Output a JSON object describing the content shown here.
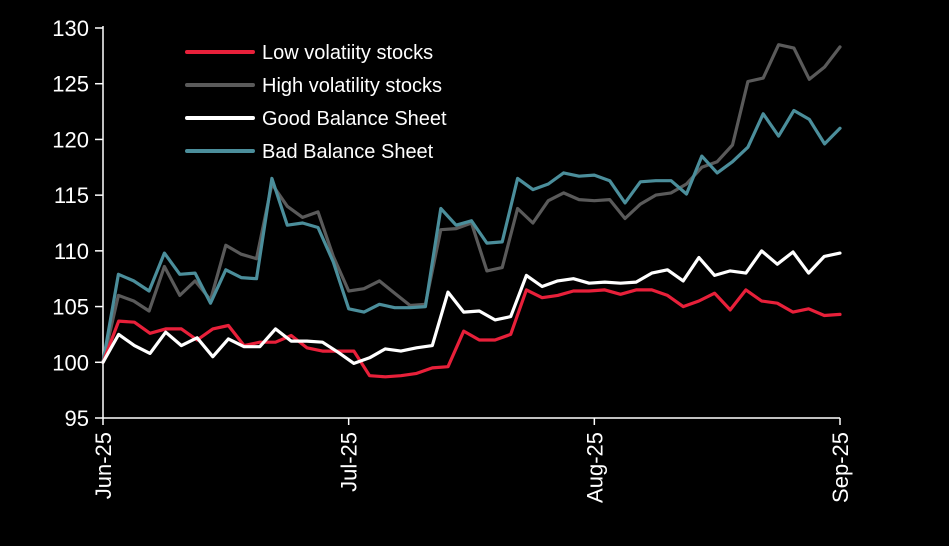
{
  "chart_data": {
    "type": "line",
    "title": "",
    "xlabel": "",
    "ylabel": "",
    "ylim": [
      95,
      130
    ],
    "yticks": [
      95,
      100,
      105,
      110,
      115,
      120,
      125,
      130
    ],
    "xtick_labels": [
      "Jun-25",
      "Jul-25",
      "Aug-25",
      "Sep-25"
    ],
    "xtick_index": [
      0,
      22,
      44,
      66
    ],
    "grid": false,
    "legend_position": "top-left",
    "background": "#000000",
    "series": [
      {
        "name": "Low volatiity stocks",
        "color": "#e8203a",
        "values": [
          100,
          103.7,
          103.6,
          102.6,
          103,
          103,
          102,
          103,
          103.3,
          101.5,
          101.8,
          101.8,
          102.4,
          101.3,
          101,
          101,
          101,
          98.8,
          98.7,
          98.8,
          99,
          99.5,
          99.6,
          102.8,
          102,
          102,
          102.5,
          106.5,
          105.8,
          106,
          106.4,
          106.4,
          106.5,
          106.1,
          106.5,
          106.5,
          106,
          105,
          105.5,
          106.2,
          104.7,
          106.5,
          105.5,
          105.3,
          104.5,
          104.8,
          104.2,
          104.3
        ]
      },
      {
        "name": "High volatility stocks",
        "color": "#5a5a5a",
        "values": [
          100,
          106,
          105.5,
          104.6,
          108.6,
          106,
          107.3,
          105.6,
          110.5,
          109.7,
          109.3,
          116,
          114,
          113,
          113.5,
          109.5,
          106.4,
          106.6,
          107.3,
          106.2,
          105.1,
          105.2,
          111.9,
          112,
          112.5,
          108.2,
          108.5,
          113.8,
          112.5,
          114.5,
          115.2,
          114.6,
          114.5,
          114.6,
          112.9,
          114.2,
          115,
          115.2,
          116,
          117.5,
          118,
          119.5,
          125.2,
          125.5,
          128.5,
          128.2,
          125.4,
          126.5,
          128.3
        ]
      },
      {
        "name": "Good Balance Sheet",
        "color": "#ffffff",
        "values": [
          100,
          102.5,
          101.5,
          100.8,
          102.7,
          101.5,
          102.2,
          100.5,
          102.1,
          101.4,
          101.4,
          103,
          101.9,
          101.9,
          101.8,
          100.9,
          99.9,
          100.4,
          101.2,
          101,
          101.3,
          101.5,
          106.3,
          104.5,
          104.6,
          103.8,
          104.1,
          107.8,
          106.8,
          107.3,
          107.5,
          107.1,
          107.2,
          107.1,
          107.2,
          108,
          108.3,
          107.3,
          109.4,
          107.8,
          108.2,
          108,
          110,
          108.8,
          109.9,
          108,
          109.5,
          109.8
        ]
      },
      {
        "name": "Bad Balance Sheet",
        "color": "#4b8e9b",
        "values": [
          100,
          107.9,
          107.3,
          106.4,
          109.8,
          107.9,
          108,
          105.3,
          108.3,
          107.6,
          107.5,
          116.5,
          112.3,
          112.5,
          112.1,
          109,
          104.8,
          104.5,
          105.2,
          104.9,
          104.9,
          105,
          113.8,
          112.3,
          112.7,
          110.7,
          110.8,
          116.5,
          115.5,
          116,
          117,
          116.7,
          116.8,
          116.3,
          114.3,
          116.2,
          116.3,
          116.3,
          115.1,
          118.5,
          117,
          118,
          119.3,
          122.3,
          120.3,
          122.6,
          121.8,
          119.6,
          121
        ]
      }
    ]
  }
}
